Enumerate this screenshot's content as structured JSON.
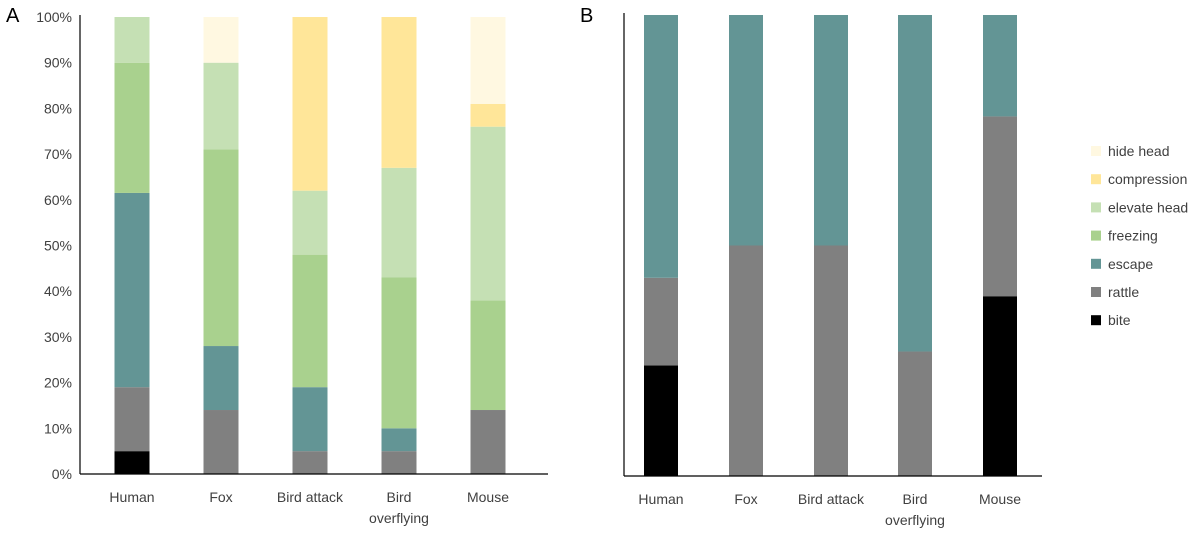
{
  "chart_data": [
    {
      "type": "bar",
      "stacked": true,
      "panel_label": "A",
      "categories": [
        "Human",
        "Fox",
        "Bird attack",
        "Bird\noverflying",
        "Mouse"
      ],
      "ylim": [
        0,
        100
      ],
      "yticks": [
        0,
        10,
        20,
        30,
        40,
        50,
        60,
        70,
        80,
        90,
        100
      ],
      "ytick_labels": [
        "0%",
        "10%",
        "20%",
        "30%",
        "40%",
        "50%",
        "60%",
        "70%",
        "80%",
        "90%",
        "100%"
      ],
      "series": [
        {
          "name": "bite",
          "color": "#000000",
          "values": [
            5,
            0,
            0,
            0,
            0
          ]
        },
        {
          "name": "rattle",
          "color": "#808080",
          "values": [
            14,
            14,
            5,
            5,
            14
          ]
        },
        {
          "name": "escape",
          "color": "#639595",
          "values": [
            42.5,
            14,
            14,
            5,
            0
          ]
        },
        {
          "name": "freezing",
          "color": "#a9d18e",
          "values": [
            28.5,
            43,
            29,
            33,
            24
          ]
        },
        {
          "name": "elevate head",
          "color": "#c5e0b4",
          "values": [
            10,
            19,
            14,
            24,
            38
          ]
        },
        {
          "name": "compression",
          "color": "#ffe699",
          "values": [
            0,
            0,
            38,
            33,
            5
          ]
        },
        {
          "name": "hide head",
          "color": "#fff8e1",
          "values": [
            0,
            10,
            0,
            0,
            19
          ]
        }
      ]
    },
    {
      "type": "bar",
      "stacked": true,
      "panel_label": "B",
      "categories": [
        "Human",
        "Fox",
        "Bird attack",
        "Bird\noverflying",
        "Mouse"
      ],
      "ylim": [
        0,
        100
      ],
      "series": [
        {
          "name": "bite",
          "color": "#000000",
          "values": [
            24,
            0,
            0,
            0,
            39
          ]
        },
        {
          "name": "rattle",
          "color": "#808080",
          "values": [
            19,
            50,
            50,
            27,
            39
          ]
        },
        {
          "name": "escape",
          "color": "#639595",
          "values": [
            57,
            50,
            50,
            73,
            22
          ]
        },
        {
          "name": "freezing",
          "color": "#a9d18e",
          "values": [
            0,
            0,
            0,
            0,
            0
          ]
        },
        {
          "name": "elevate head",
          "color": "#c5e0b4",
          "values": [
            0,
            0,
            0,
            0,
            0
          ]
        },
        {
          "name": "compression",
          "color": "#ffe699",
          "values": [
            0,
            0,
            0,
            0,
            0
          ]
        },
        {
          "name": "hide head",
          "color": "#fff8e1",
          "values": [
            0,
            0,
            0,
            0,
            0
          ]
        }
      ]
    }
  ],
  "legend": [
    {
      "label": "hide head",
      "color": "#fff8e1"
    },
    {
      "label": "compression",
      "color": "#ffe699"
    },
    {
      "label": "elevate head",
      "color": "#c5e0b4"
    },
    {
      "label": "freezing",
      "color": "#a9d18e"
    },
    {
      "label": "escape",
      "color": "#639595"
    },
    {
      "label": "rattle",
      "color": "#808080"
    },
    {
      "label": "bite",
      "color": "#000000"
    }
  ]
}
